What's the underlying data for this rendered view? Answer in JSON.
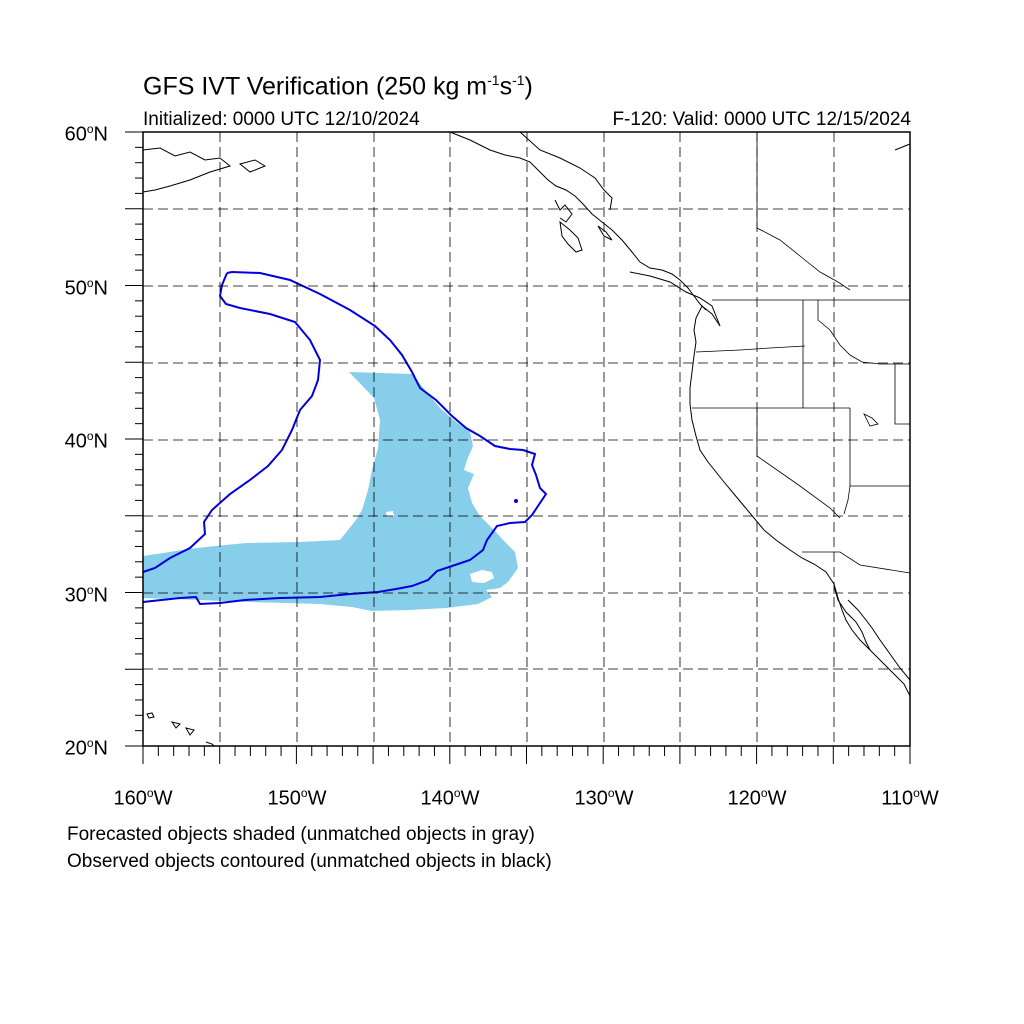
{
  "title": {
    "main": "GFS IVT Verification (250 kg m",
    "exp1": "-1",
    "mid": "s",
    "exp2": "-1",
    "end": ")"
  },
  "initialized": "Initialized: 0000 UTC 12/10/2024",
  "valid": "F-120: Valid: 0000 UTC 12/15/2024",
  "lat_labels": [
    {
      "num": "60",
      "deg": "o",
      "hem": "N"
    },
    {
      "num": "50",
      "deg": "o",
      "hem": "N"
    },
    {
      "num": "40",
      "deg": "o",
      "hem": "N"
    },
    {
      "num": "30",
      "deg": "o",
      "hem": "N"
    },
    {
      "num": "20",
      "deg": "o",
      "hem": "N"
    }
  ],
  "lon_labels": [
    {
      "num": "160",
      "deg": "o",
      "hem": "W"
    },
    {
      "num": "150",
      "deg": "o",
      "hem": "W"
    },
    {
      "num": "140",
      "deg": "o",
      "hem": "W"
    },
    {
      "num": "130",
      "deg": "o",
      "hem": "W"
    },
    {
      "num": "120",
      "deg": "o",
      "hem": "W"
    },
    {
      "num": "110",
      "deg": "o",
      "hem": "W"
    }
  ],
  "legend": {
    "line1": "Forecasted objects shaded (unmatched objects in gray)",
    "line2": "Observed objects contoured (unmatched objects in black)"
  },
  "colors": {
    "forecast_fill": "#87ceeb",
    "observed_contour": "#0000dd",
    "coastline": "#000000",
    "grid": "#000000"
  },
  "map_extent": {
    "lon_min": -160,
    "lon_max": -110,
    "lat_min": 20,
    "lat_max": 60
  }
}
